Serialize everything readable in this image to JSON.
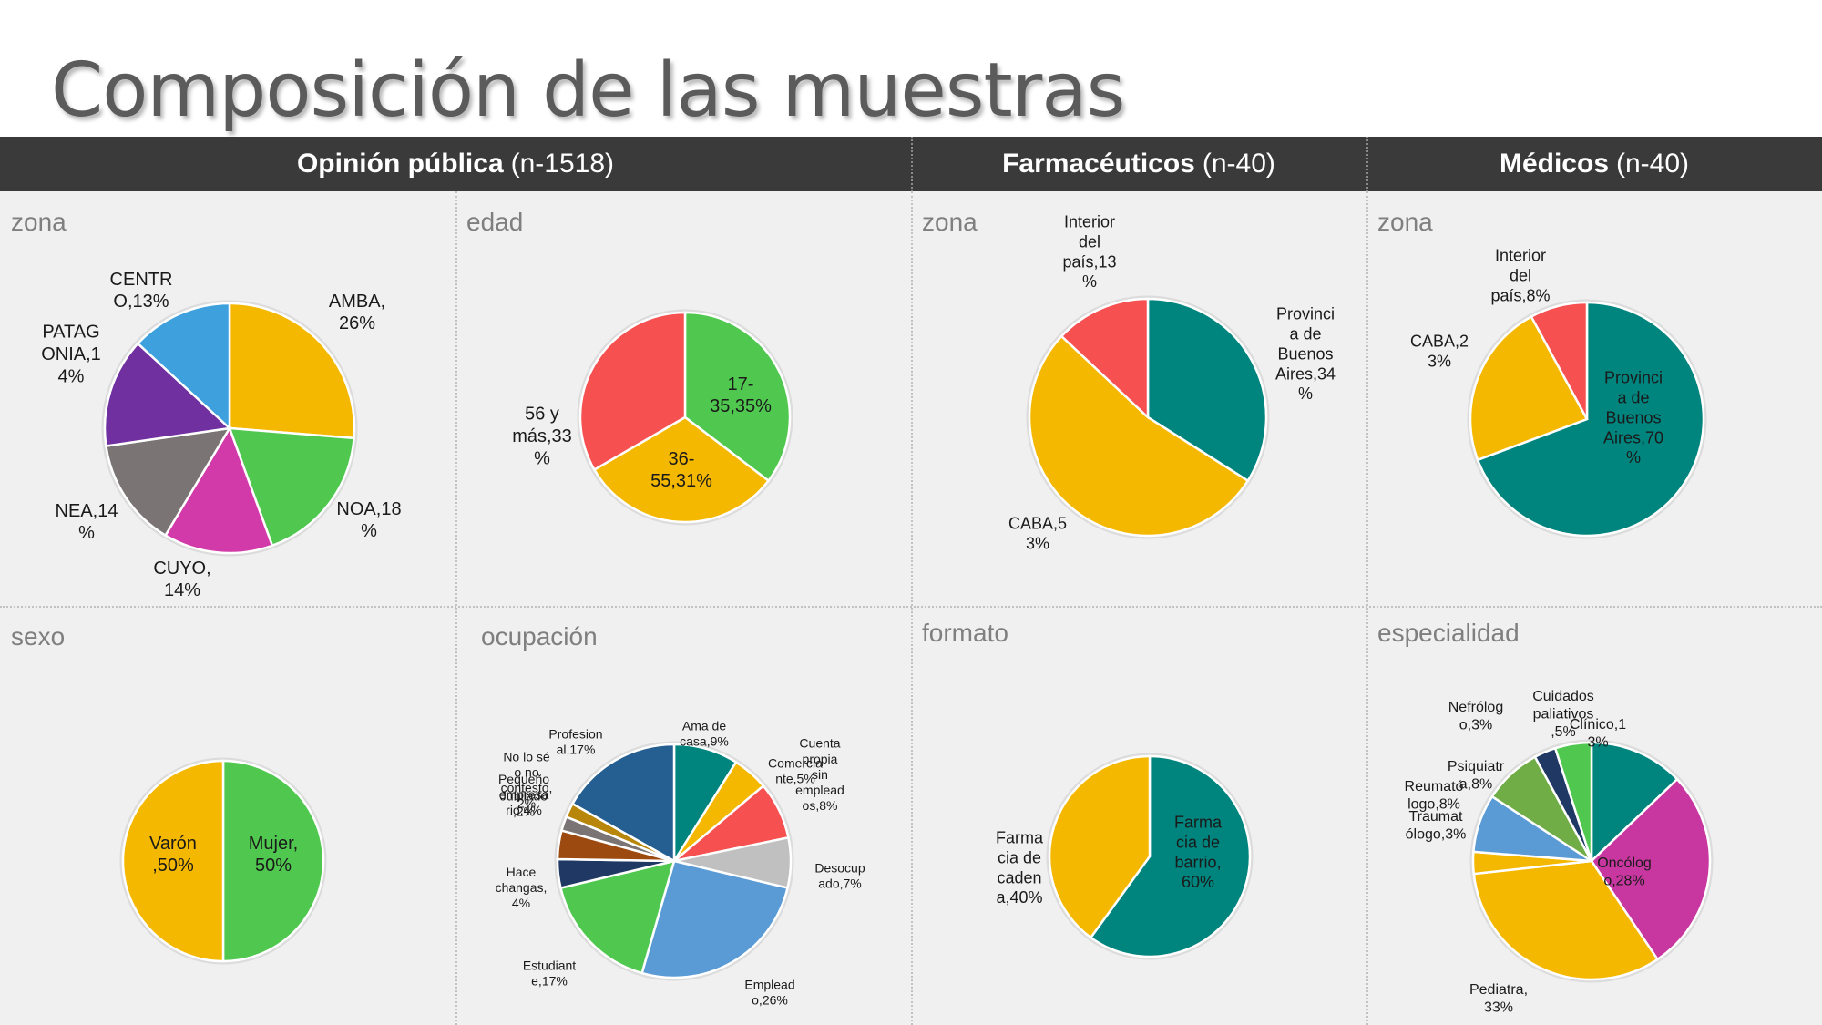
{
  "page": {
    "title": "Composición de las muestras"
  },
  "headers": [
    {
      "bold": "Opinión pública",
      "rest": "(n-1518)"
    },
    {
      "bold": "Farmacéuticos",
      "rest": "(n-40)"
    },
    {
      "bold": "Médicos",
      "rest": "(n-40)"
    }
  ],
  "chart_data": [
    {
      "id": "op_zona",
      "type": "pie",
      "title": "zona",
      "group": "Opinión pública",
      "slices": [
        {
          "name": "AMBA",
          "value": 26,
          "label": "AMBA,\n26%",
          "color": "#f5b800"
        },
        {
          "name": "NOA",
          "value": 18,
          "label": "NOA,18\n%",
          "color": "#50c850"
        },
        {
          "name": "CUYO",
          "value": 14,
          "label": "CUYO,\n14%",
          "color": "#d13aa8"
        },
        {
          "name": "NEA",
          "value": 14,
          "label": "NEA,14\n%",
          "color": "#7a7474"
        },
        {
          "name": "PATAGONIA",
          "value": 14,
          "label": "PATAG\nONIA,1\n4%",
          "color": "#7030a0"
        },
        {
          "name": "CENTRO",
          "value": 13,
          "label": "CENTR\nO,13%",
          "color": "#3ea0dc"
        }
      ]
    },
    {
      "id": "op_edad",
      "type": "pie",
      "title": "edad",
      "group": "Opinión pública",
      "slices": [
        {
          "name": "17-35",
          "value": 35,
          "label": "17-\n35,35%",
          "color": "#50c850"
        },
        {
          "name": "36-55",
          "value": 31,
          "label": "36-\n55,31%",
          "color": "#f5b800"
        },
        {
          "name": "56 y más",
          "value": 33,
          "label": "56 y\nmás,33\n%",
          "color": "#f65050"
        }
      ]
    },
    {
      "id": "far_zona",
      "type": "pie",
      "title": "zona",
      "group": "Farmacéuticos",
      "slices": [
        {
          "name": "Provincia de Buenos Aires",
          "value": 34,
          "label": "Provinci\na de\nBuenos\nAires,34\n%",
          "color": "#00847e"
        },
        {
          "name": "CABA",
          "value": 53,
          "label": "CABA,5\n3%",
          "color": "#f5b800"
        },
        {
          "name": "Interior del país",
          "value": 13,
          "label": "Interior\ndel\npaís,13\n%",
          "color": "#f65050"
        }
      ]
    },
    {
      "id": "med_zona",
      "type": "pie",
      "title": "zona",
      "group": "Médicos",
      "slices": [
        {
          "name": "Provincia de Buenos Aires",
          "value": 70,
          "label": "Provinci\na de\nBuenos\nAires,70\n%",
          "color": "#00847e"
        },
        {
          "name": "CABA",
          "value": 23,
          "label": "CABA,2\n3%",
          "color": "#f5b800"
        },
        {
          "name": "Interior del país",
          "value": 8,
          "label": "Interior\ndel\npaís,8%",
          "color": "#f65050"
        }
      ]
    },
    {
      "id": "op_sexo",
      "type": "pie",
      "title": "sexo",
      "group": "Opinión pública",
      "slices": [
        {
          "name": "Mujer",
          "value": 50,
          "label": "Mujer,\n50%",
          "color": "#50c850"
        },
        {
          "name": "Varón",
          "value": 50,
          "label": "Varón\n,50%",
          "color": "#f5b800"
        }
      ]
    },
    {
      "id": "op_ocupacion",
      "type": "pie",
      "title": "ocupación",
      "group": "Opinión pública",
      "slices": [
        {
          "name": "Ama de casa",
          "value": 9,
          "label": "Ama de\ncasa,9%",
          "color": "#00847e"
        },
        {
          "name": "Comerciante",
          "value": 5,
          "label": "Comercia\nnte,5%",
          "color": "#f5b800"
        },
        {
          "name": "Cuenta propia sin empleados",
          "value": 8,
          "label": "Cuenta\npropia\nsin\nemplead\nos,8%",
          "color": "#f65050"
        },
        {
          "name": "Desocupado",
          "value": 7,
          "label": "Desocup\nado,7%",
          "color": "#c0c0c0"
        },
        {
          "name": "Empleado",
          "value": 26,
          "label": "Emplead\no,26%",
          "color": "#5b9bd5"
        },
        {
          "name": "Estudiante",
          "value": 17,
          "label": "Estudiant\ne,17%",
          "color": "#50c850"
        },
        {
          "name": "Hace changas",
          "value": 4,
          "label": "Hace\nchangas,\n4%",
          "color": "#1f3864"
        },
        {
          "name": "Pequeño empresario",
          "value": 4,
          "label": "Pequeño\nempresa\nrio,4%",
          "color": "#9c4a10"
        },
        {
          "name": "Jubilado",
          "value": 2,
          "label": "Jubilado\n,2%",
          "color": "#7a7474"
        },
        {
          "name": "No lo sé o no contesto",
          "value": 2,
          "label": "No lo sé\no no\ncontesto,\n2%",
          "color": "#b8860b"
        },
        {
          "name": "Profesional",
          "value": 17,
          "label": "Profesion\nal,17%",
          "color": "#255e91"
        }
      ]
    },
    {
      "id": "far_formato",
      "type": "pie",
      "title": "formato",
      "group": "Farmacéuticos",
      "slices": [
        {
          "name": "Farmacia de barrio",
          "value": 60,
          "label": "Farma\ncia de\nbarrio,\n60%",
          "color": "#00847e"
        },
        {
          "name": "Farmacia de cadena",
          "value": 40,
          "label": "Farma\ncia de\ncaden\na,40%",
          "color": "#f5b800"
        }
      ]
    },
    {
      "id": "med_especialidad",
      "type": "pie",
      "title": "especialidad",
      "group": "Médicos",
      "slices": [
        {
          "name": "Clínico",
          "value": 13,
          "label": "Clínico,1\n3%",
          "color": "#00847e"
        },
        {
          "name": "Oncólogo",
          "value": 28,
          "label": "Oncólog\no,28%",
          "color": "#c837a0"
        },
        {
          "name": "Pediatra",
          "value": 33,
          "label": "Pediatra,\n33%",
          "color": "#f5b800"
        },
        {
          "name": "Traumatólogo",
          "value": 3,
          "label": "Traumat\nólogo,3%",
          "color": "#f5b800"
        },
        {
          "name": "Reumatólogo",
          "value": 8,
          "label": "Reumató\nlogo,8%",
          "color": "#5b9bd5"
        },
        {
          "name": "Psiquiatra",
          "value": 8,
          "label": "Psiquiatr\na,8%",
          "color": "#70ad47"
        },
        {
          "name": "Nefrólogo",
          "value": 3,
          "label": "Nefrólog\no,3%",
          "color": "#1f3864"
        },
        {
          "name": "Cuidados paliativos",
          "value": 5,
          "label": "Cuidados\npaliativos\n,5%",
          "color": "#50c850"
        }
      ]
    }
  ]
}
